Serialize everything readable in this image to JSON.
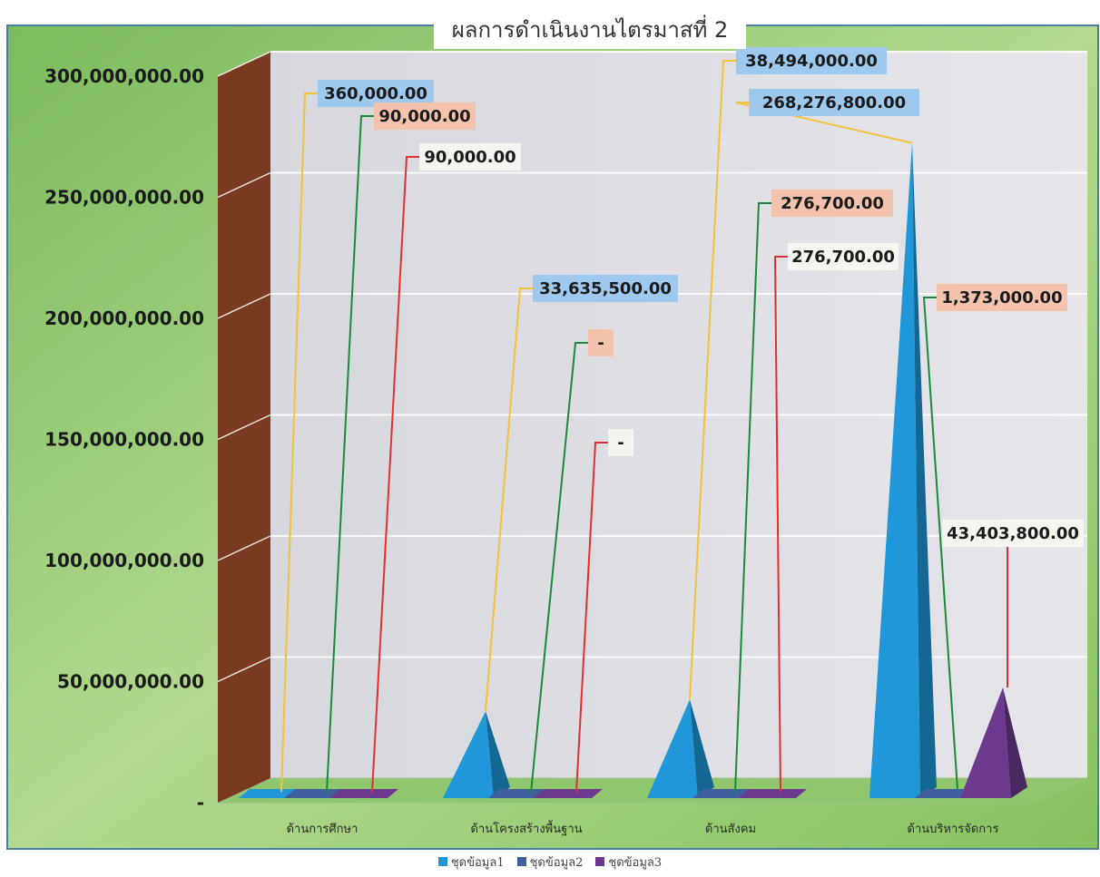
{
  "chart_data": {
    "type": "bar",
    "title": "ผลการดำเนินงานไตรมาสที่ 2",
    "categories": [
      "ด้านการศึกษา",
      "ด้านโครงสร้างพื้นฐาน",
      "ด้านสังคม",
      "ด้านบริหารจัดการ"
    ],
    "series": [
      {
        "name": "ชุดข้อมูล1",
        "color": "#1f97d8",
        "values": [
          360000,
          33635500,
          38494000,
          268276800
        ],
        "labels": [
          "360,000.00",
          "33,635,500.00",
          "38,494,000.00",
          "268,276,800.00"
        ]
      },
      {
        "name": "ชุดข้อมูล2",
        "color": "#3f5f9e",
        "values": [
          90000,
          0,
          276700,
          1373000
        ],
        "labels": [
          "90,000.00",
          "-",
          "276,700.00",
          "1,373,000.00"
        ]
      },
      {
        "name": "ชุดข้อมูล3",
        "color": "#6b3a8f",
        "values": [
          90000,
          0,
          276700,
          43403800
        ],
        "labels": [
          "90,000.00",
          "-",
          "276,700.00",
          "43,403,800.00"
        ]
      }
    ],
    "y_ticks": [
      "-",
      "50,000,000.00",
      "100,000,000.00",
      "150,000,000.00",
      "200,000,000.00",
      "250,000,000.00",
      "300,000,000.00"
    ],
    "ylim": [
      0,
      300000000
    ],
    "grid": true,
    "legend_position": "bottom"
  },
  "colors": {
    "background": "#8fc66e",
    "wall": "#d6d7e0",
    "side_wall": "#7a3a22",
    "floor": "#8fc66e",
    "label_fill_series1": "#9ec8ee",
    "label_fill_series2": "#f4c3ae",
    "label_fill_series3": "#f3f5ee",
    "leader_series1": "#f2c33a",
    "leader_series2": "#1a8a3a",
    "leader_series3": "#e03030"
  }
}
